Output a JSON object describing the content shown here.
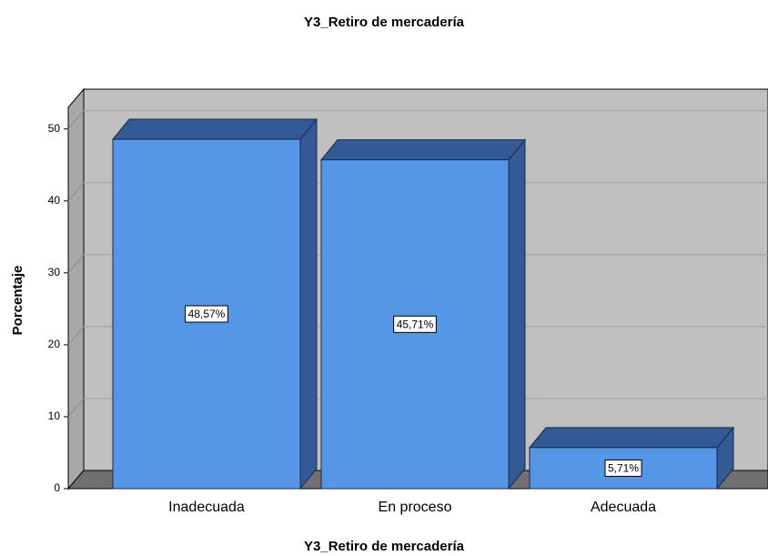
{
  "chart_data": {
    "type": "bar3d",
    "title": "Y3_Retiro de mercadería",
    "x_label": "Y3_Retiro de mercadería",
    "y_label": "Porcentaje",
    "categories": [
      "Inadecuada",
      "En proceso",
      "Adecuada"
    ],
    "values": [
      48.57,
      45.71,
      5.71
    ],
    "value_labels": [
      "48,57%",
      "45,71%",
      "5,71%"
    ],
    "color": "#5596e6",
    "ylim": [
      0,
      53
    ],
    "yticks": [
      0,
      10,
      20,
      30,
      40,
      50
    ],
    "grid": true
  }
}
